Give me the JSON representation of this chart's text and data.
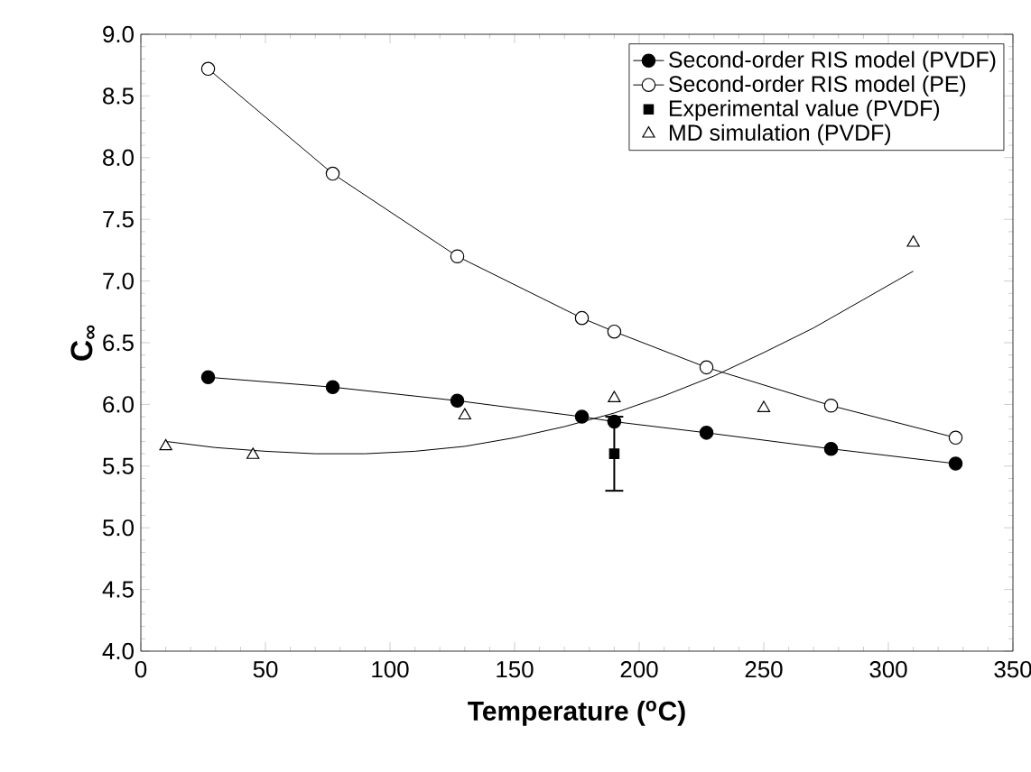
{
  "chart_data": {
    "type": "line",
    "xlabel": "Temperature ($^{o}$C)",
    "ylabel": "C$_{∞}$",
    "xlim": [
      0,
      350
    ],
    "xticks": [
      0,
      50,
      100,
      150,
      200,
      250,
      300,
      350
    ],
    "ylim": [
      4.0,
      9.0
    ],
    "yticks": [
      {
        "value": 4.0,
        "label": "4.0"
      },
      {
        "value": 4.5,
        "label": "4.5"
      },
      {
        "value": 5.0,
        "label": "5.0"
      },
      {
        "value": 5.5,
        "label": "5.5"
      },
      {
        "value": 6.0,
        "label": "6.0"
      },
      {
        "value": 6.5,
        "label": "6.5"
      },
      {
        "value": 7.0,
        "label": "7.0"
      },
      {
        "value": 7.5,
        "label": "7.5"
      },
      {
        "value": 8.0,
        "label": "8.0"
      },
      {
        "value": 8.5,
        "label": "8.5"
      },
      {
        "value": 9.0,
        "label": "9.0"
      }
    ],
    "grid": false,
    "legend": "top right",
    "series": [
      {
        "name": "Second-order RIS model (PVDF)",
        "type": "line",
        "marker": "circle",
        "color": "#000000",
        "x": [
          27,
          77,
          127,
          177,
          190,
          227,
          277,
          327
        ],
        "values": [
          6.22,
          6.14,
          6.03,
          5.9,
          5.86,
          5.77,
          5.64,
          5.52
        ]
      },
      {
        "name": "Second-order RIS model (PE)",
        "type": "line",
        "marker": "circle",
        "color": "#ffffff",
        "x": [
          27,
          77,
          127,
          177,
          190,
          227,
          277,
          327
        ],
        "values": [
          8.72,
          7.87,
          7.2,
          6.7,
          6.59,
          6.3,
          5.99,
          5.73
        ]
      },
      {
        "name": "Experimental value (PVDF)",
        "type": "scatter",
        "marker": "square",
        "color": "#000000",
        "x": [
          190
        ],
        "values": [
          5.6
        ],
        "errors": [
          [
            5.3,
            5.9
          ]
        ]
      },
      {
        "name": "MD simulation (PVDF)",
        "type": "scatter",
        "marker": "triangle",
        "color": "#ffffff",
        "x": [
          10,
          45,
          130,
          190,
          250,
          310
        ],
        "values": [
          5.66,
          5.59,
          5.91,
          6.05,
          5.97,
          7.31
        ]
      },
      {
        "type": "line",
        "marker": "none",
        "color": "#000000",
        "x": [
          10,
          30,
          50,
          70,
          90,
          110,
          130,
          150,
          170,
          190,
          210,
          230,
          250,
          270,
          290,
          310
        ],
        "values": [
          5.7,
          5.65,
          5.62,
          5.6,
          5.6,
          5.62,
          5.66,
          5.73,
          5.82,
          5.93,
          6.07,
          6.23,
          6.42,
          6.62,
          6.85,
          7.08
        ]
      }
    ]
  }
}
